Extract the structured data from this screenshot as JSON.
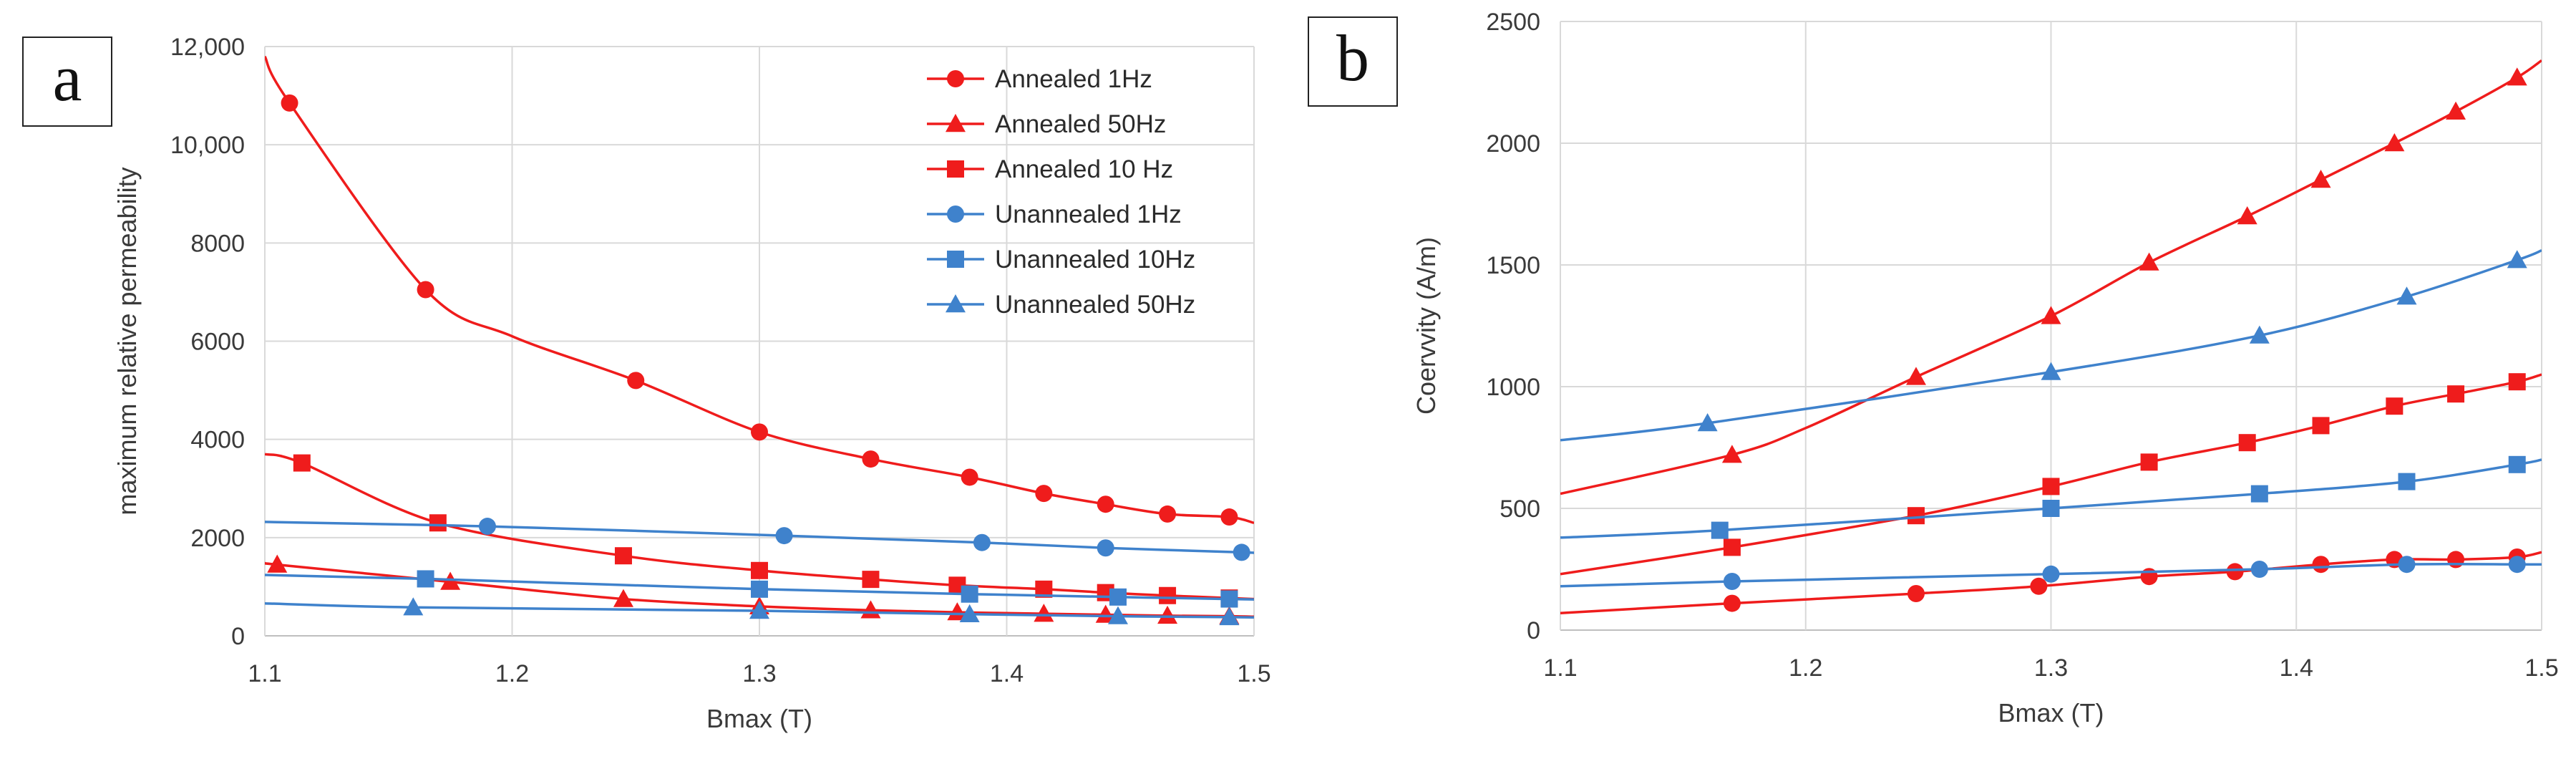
{
  "colors": {
    "annealed": "#ef1c1c",
    "unannealed": "#3f82cc",
    "grid": "#d9d9d9",
    "axis": "#bfbfbf"
  },
  "chart_data": [
    {
      "panel": "a",
      "type": "line",
      "title": "",
      "xlabel": "Bmax (T)",
      "ylabel": "maximum relative permeability",
      "xlim": [
        1.1,
        1.5
      ],
      "ylim": [
        0,
        12000
      ],
      "xticks": [
        1.1,
        1.2,
        1.3,
        1.4,
        1.5
      ],
      "xtick_labels": [
        "1.1",
        "1.2",
        "1.3",
        "1.4",
        "1.5"
      ],
      "yticks": [
        0,
        2000,
        4000,
        6000,
        8000,
        10000,
        12000
      ],
      "ytick_labels": [
        "0",
        "2000",
        "4000",
        "6000",
        "8000",
        "10,000",
        "12,000"
      ],
      "grid": true,
      "legend_position": "top-right",
      "series": [
        {
          "name": "Annealed 1Hz",
          "color": "annealed",
          "marker": "circle",
          "x": [
            1.11,
            1.165,
            1.25,
            1.3,
            1.345,
            1.385,
            1.415,
            1.44,
            1.465,
            1.49
          ],
          "y": [
            10850,
            7050,
            5200,
            4150,
            3600,
            3230,
            2900,
            2680,
            2480,
            2420
          ],
          "curve_x": [
            1.1,
            1.11,
            1.165,
            1.2,
            1.25,
            1.3,
            1.345,
            1.385,
            1.415,
            1.44,
            1.465,
            1.49,
            1.5
          ],
          "curve_y": [
            11800,
            10850,
            7050,
            6100,
            5200,
            4150,
            3600,
            3230,
            2900,
            2680,
            2480,
            2420,
            2300
          ]
        },
        {
          "name": "Annealed 50Hz",
          "color": "annealed",
          "marker": "triangle",
          "x": [
            1.105,
            1.175,
            1.245,
            1.3,
            1.345,
            1.38,
            1.415,
            1.44,
            1.465,
            1.49
          ],
          "y": [
            1450,
            1100,
            750,
            600,
            520,
            480,
            450,
            430,
            410,
            400
          ],
          "curve_x": [
            1.1,
            1.105,
            1.175,
            1.245,
            1.3,
            1.345,
            1.38,
            1.415,
            1.44,
            1.465,
            1.49,
            1.5
          ],
          "curve_y": [
            1480,
            1450,
            1100,
            750,
            600,
            520,
            480,
            450,
            430,
            410,
            400,
            390
          ]
        },
        {
          "name": "Annealed 10 Hz",
          "color": "annealed",
          "marker": "square",
          "x": [
            1.115,
            1.17,
            1.245,
            1.3,
            1.345,
            1.38,
            1.415,
            1.44,
            1.465,
            1.49
          ],
          "y": [
            3520,
            2300,
            1630,
            1330,
            1150,
            1030,
            950,
            880,
            820,
            770
          ],
          "curve_x": [
            1.1,
            1.115,
            1.17,
            1.245,
            1.3,
            1.345,
            1.38,
            1.415,
            1.44,
            1.465,
            1.49,
            1.5
          ],
          "curve_y": [
            3700,
            3520,
            2300,
            1630,
            1330,
            1150,
            1030,
            950,
            880,
            820,
            770,
            750
          ]
        },
        {
          "name": "Unannealed 1Hz",
          "color": "unannealed",
          "marker": "circle",
          "x": [
            1.19,
            1.31,
            1.39,
            1.44,
            1.495
          ],
          "y": [
            2230,
            2040,
            1900,
            1790,
            1700
          ],
          "curve_x": [
            1.1,
            1.19,
            1.31,
            1.39,
            1.44,
            1.495,
            1.5
          ],
          "curve_y": [
            2320,
            2230,
            2040,
            1900,
            1790,
            1700,
            1690
          ]
        },
        {
          "name": "Unannealed 10Hz",
          "color": "unannealed",
          "marker": "square",
          "x": [
            1.165,
            1.3,
            1.385,
            1.445,
            1.49
          ],
          "y": [
            1160,
            950,
            850,
            790,
            750
          ],
          "curve_x": [
            1.1,
            1.165,
            1.3,
            1.385,
            1.445,
            1.49,
            1.5
          ],
          "curve_y": [
            1240,
            1160,
            950,
            850,
            790,
            750,
            740
          ]
        },
        {
          "name": "Unannealed 50Hz",
          "color": "unannealed",
          "marker": "triangle",
          "x": [
            1.16,
            1.3,
            1.385,
            1.445,
            1.49
          ],
          "y": [
            580,
            510,
            440,
            400,
            380
          ],
          "curve_x": [
            1.1,
            1.16,
            1.3,
            1.385,
            1.445,
            1.49,
            1.5
          ],
          "curve_y": [
            660,
            580,
            510,
            440,
            400,
            380,
            375
          ]
        }
      ]
    },
    {
      "panel": "b",
      "type": "line",
      "title": "",
      "xlabel": "Bmax (T)",
      "ylabel": "Coervvity (A/m)",
      "xlim": [
        1.1,
        1.5
      ],
      "ylim": [
        0,
        2500
      ],
      "xticks": [
        1.1,
        1.2,
        1.3,
        1.4,
        1.5
      ],
      "xtick_labels": [
        "1.1",
        "1.2",
        "1.3",
        "1.4",
        "1.5"
      ],
      "yticks": [
        0,
        500,
        1000,
        1500,
        2000,
        2500
      ],
      "ytick_labels": [
        "0",
        "500",
        "1000",
        "1500",
        "2000",
        "2500"
      ],
      "grid": true,
      "series": [
        {
          "name": "Annealed 50Hz",
          "color": "annealed",
          "marker": "triangle",
          "x": [
            1.17,
            1.245,
            1.3,
            1.34,
            1.38,
            1.41,
            1.44,
            1.465,
            1.49
          ],
          "y": [
            720,
            1040,
            1290,
            1510,
            1700,
            1850,
            2000,
            2130,
            2270
          ],
          "curve_x": [
            1.1,
            1.17,
            1.2,
            1.245,
            1.3,
            1.34,
            1.38,
            1.41,
            1.44,
            1.465,
            1.49,
            1.5
          ],
          "curve_y": [
            560,
            720,
            830,
            1040,
            1290,
            1510,
            1700,
            1850,
            2000,
            2130,
            2270,
            2340
          ]
        },
        {
          "name": "Unannealed 50Hz",
          "color": "unannealed",
          "marker": "triangle",
          "x": [
            1.16,
            1.3,
            1.385,
            1.445,
            1.49
          ],
          "y": [
            850,
            1060,
            1210,
            1370,
            1520
          ],
          "curve_x": [
            1.1,
            1.16,
            1.3,
            1.385,
            1.445,
            1.49,
            1.5
          ],
          "curve_y": [
            780,
            850,
            1060,
            1210,
            1370,
            1520,
            1560
          ]
        },
        {
          "name": "Annealed 10 Hz",
          "color": "annealed",
          "marker": "square",
          "x": [
            1.17,
            1.245,
            1.3,
            1.34,
            1.38,
            1.41,
            1.44,
            1.465,
            1.49
          ],
          "y": [
            340,
            470,
            590,
            690,
            770,
            840,
            920,
            970,
            1020
          ],
          "curve_x": [
            1.1,
            1.17,
            1.245,
            1.3,
            1.34,
            1.38,
            1.41,
            1.44,
            1.465,
            1.49,
            1.5
          ],
          "curve_y": [
            230,
            340,
            470,
            590,
            690,
            770,
            840,
            920,
            970,
            1020,
            1050
          ]
        },
        {
          "name": "Unannealed 10Hz",
          "color": "unannealed",
          "marker": "square",
          "x": [
            1.165,
            1.3,
            1.385,
            1.445,
            1.49
          ],
          "y": [
            410,
            500,
            560,
            610,
            680
          ],
          "curve_x": [
            1.1,
            1.165,
            1.3,
            1.385,
            1.445,
            1.49,
            1.5
          ],
          "curve_y": [
            380,
            410,
            500,
            560,
            610,
            680,
            700
          ]
        },
        {
          "name": "Annealed 1Hz",
          "color": "annealed",
          "marker": "circle",
          "x": [
            1.17,
            1.245,
            1.295,
            1.34,
            1.375,
            1.41,
            1.44,
            1.465,
            1.49
          ],
          "y": [
            110,
            150,
            180,
            220,
            240,
            270,
            290,
            290,
            300
          ],
          "curve_x": [
            1.1,
            1.17,
            1.245,
            1.295,
            1.34,
            1.375,
            1.41,
            1.44,
            1.465,
            1.49,
            1.5
          ],
          "curve_y": [
            70,
            110,
            150,
            180,
            220,
            240,
            270,
            290,
            290,
            300,
            320
          ]
        },
        {
          "name": "Unannealed 1Hz",
          "color": "unannealed",
          "marker": "circle",
          "x": [
            1.17,
            1.3,
            1.385,
            1.445,
            1.49
          ],
          "y": [
            200,
            230,
            250,
            270,
            270
          ],
          "curve_x": [
            1.1,
            1.17,
            1.3,
            1.385,
            1.445,
            1.49,
            1.5
          ],
          "curve_y": [
            180,
            200,
            230,
            250,
            270,
            270,
            270
          ]
        }
      ]
    }
  ]
}
